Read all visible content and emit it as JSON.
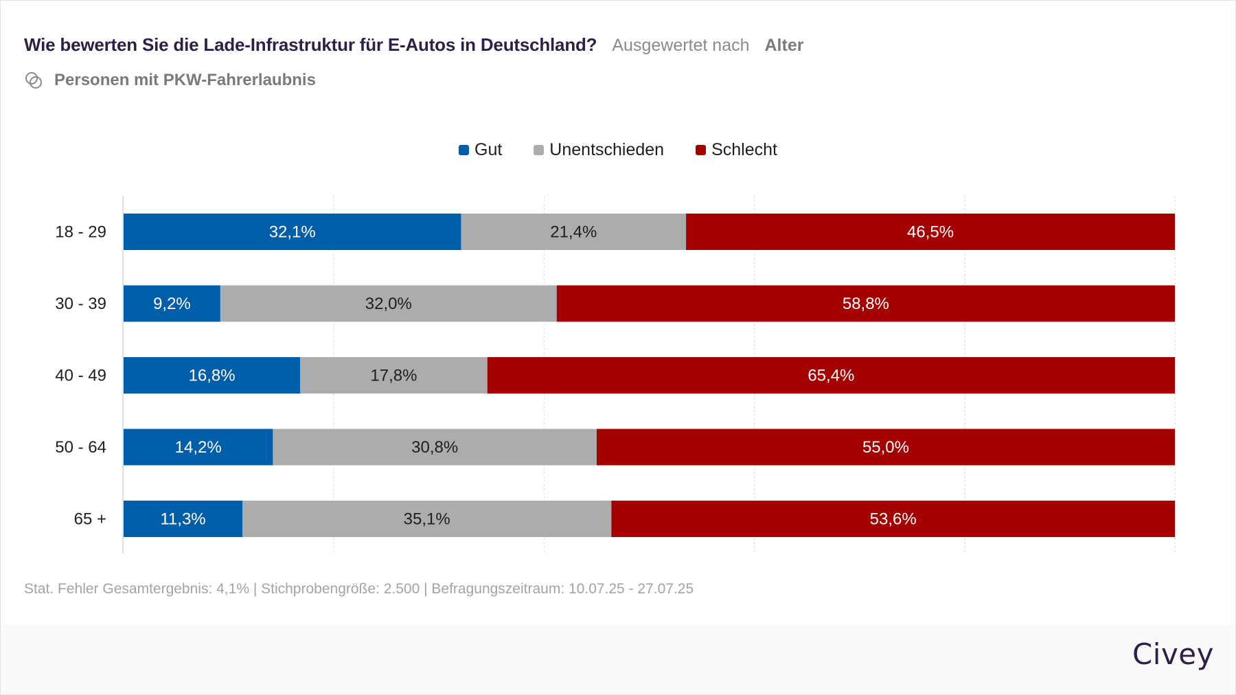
{
  "header": {
    "title": "Wie bewerten Sie die Lade-Infrastruktur für E-Autos in Deutschland?",
    "evaluated_by_label": "Ausgewertet nach",
    "evaluated_by_value": "Alter",
    "audience_icon": "overlapping-circles-icon",
    "audience": "Personen mit PKW-Fahrerlaubnis"
  },
  "footer": {
    "note": "Stat. Fehler Gesamtergebnis: 4,1% | Stichprobengröße: 2.500 | Befragungszeitraum: 10.07.25 - 27.07.25",
    "brand": "Civey"
  },
  "colors": {
    "gut": "#005ea8",
    "unentschieden": "#acacac",
    "schlecht": "#a50000",
    "title": "#2d1f45"
  },
  "chart_data": {
    "type": "bar",
    "orientation": "horizontal",
    "stacked": true,
    "normalized": true,
    "title": "Wie bewerten Sie die Lade-Infrastruktur für E-Autos in Deutschland?",
    "xlabel": "",
    "ylabel": "Alter",
    "xlim": [
      0,
      100
    ],
    "grid": true,
    "legend_position": "top-center",
    "categories": [
      "18 - 29",
      "30 - 39",
      "40 - 49",
      "50 - 64",
      "65 +"
    ],
    "series": [
      {
        "name": "Gut",
        "color": "#005ea8",
        "label_color": "#ffffff",
        "values": [
          32.1,
          9.2,
          16.8,
          14.2,
          11.3
        ],
        "labels": [
          "32,1%",
          "9,2%",
          "16,8%",
          "14,2%",
          "11,3%"
        ]
      },
      {
        "name": "Unentschieden",
        "color": "#acacac",
        "label_color": "#1e1e1e",
        "values": [
          21.4,
          32.0,
          17.8,
          30.8,
          35.1
        ],
        "labels": [
          "21,4%",
          "32,0%",
          "17,8%",
          "30,8%",
          "35,1%"
        ]
      },
      {
        "name": "Schlecht",
        "color": "#a50000",
        "label_color": "#ffffff",
        "values": [
          46.5,
          58.8,
          65.4,
          55.0,
          53.6
        ],
        "labels": [
          "46,5%",
          "58,8%",
          "65,4%",
          "55,0%",
          "53,6%"
        ]
      }
    ]
  }
}
